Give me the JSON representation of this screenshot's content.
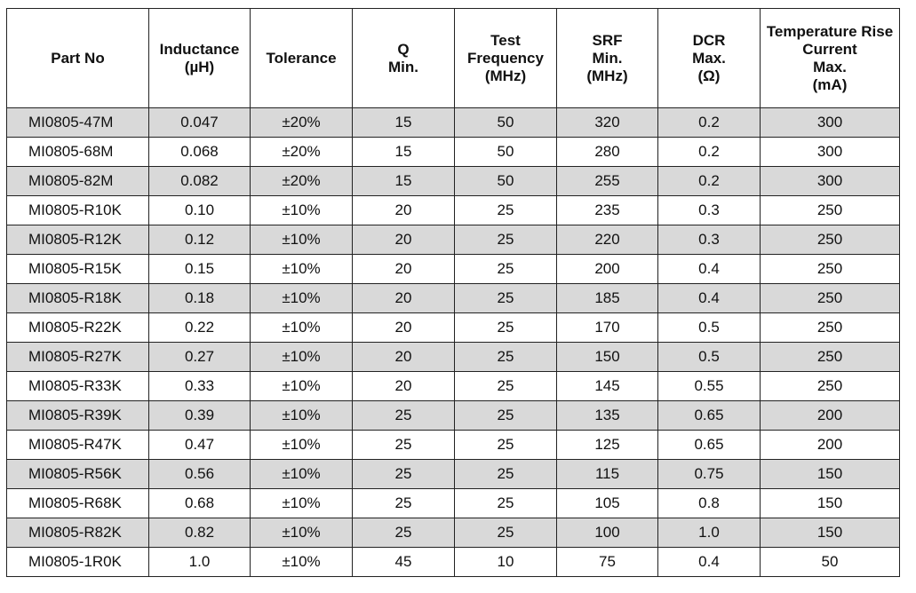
{
  "headers": [
    [
      "Part No"
    ],
    [
      "Inductance",
      "(µH)"
    ],
    [
      "Tolerance"
    ],
    [
      "Q",
      "Min."
    ],
    [
      "Test",
      "Frequency",
      "(MHz)"
    ],
    [
      "SRF",
      "Min.",
      "(MHz)"
    ],
    [
      "DCR",
      "Max.",
      "(Ω)"
    ],
    [
      "Temperature Rise",
      "Current",
      "Max.",
      "(mA)"
    ]
  ],
  "rows": [
    [
      "MI0805-47M",
      "0.047",
      "±20%",
      "15",
      "50",
      "320",
      "0.2",
      "300"
    ],
    [
      "MI0805-68M",
      "0.068",
      "±20%",
      "15",
      "50",
      "280",
      "0.2",
      "300"
    ],
    [
      "MI0805-82M",
      "0.082",
      "±20%",
      "15",
      "50",
      "255",
      "0.2",
      "300"
    ],
    [
      "MI0805-R10K",
      "0.10",
      "±10%",
      "20",
      "25",
      "235",
      "0.3",
      "250"
    ],
    [
      "MI0805-R12K",
      "0.12",
      "±10%",
      "20",
      "25",
      "220",
      "0.3",
      "250"
    ],
    [
      "MI0805-R15K",
      "0.15",
      "±10%",
      "20",
      "25",
      "200",
      "0.4",
      "250"
    ],
    [
      "MI0805-R18K",
      "0.18",
      "±10%",
      "20",
      "25",
      "185",
      "0.4",
      "250"
    ],
    [
      "MI0805-R22K",
      "0.22",
      "±10%",
      "20",
      "25",
      "170",
      "0.5",
      "250"
    ],
    [
      "MI0805-R27K",
      "0.27",
      "±10%",
      "20",
      "25",
      "150",
      "0.5",
      "250"
    ],
    [
      "MI0805-R33K",
      "0.33",
      "±10%",
      "20",
      "25",
      "145",
      "0.55",
      "250"
    ],
    [
      "MI0805-R39K",
      "0.39",
      "±10%",
      "25",
      "25",
      "135",
      "0.65",
      "200"
    ],
    [
      "MI0805-R47K",
      "0.47",
      "±10%",
      "25",
      "25",
      "125",
      "0.65",
      "200"
    ],
    [
      "MI0805-R56K",
      "0.56",
      "±10%",
      "25",
      "25",
      "115",
      "0.75",
      "150"
    ],
    [
      "MI0805-R68K",
      "0.68",
      "±10%",
      "25",
      "25",
      "105",
      "0.8",
      "150"
    ],
    [
      "MI0805-R82K",
      "0.82",
      "±10%",
      "25",
      "25",
      "100",
      "1.0",
      "150"
    ],
    [
      "MI0805-1R0K",
      "1.0",
      "±10%",
      "45",
      "10",
      "75",
      "0.4",
      "50"
    ]
  ],
  "colors": {
    "shade": "#d9d9d9",
    "border": "#222222"
  }
}
